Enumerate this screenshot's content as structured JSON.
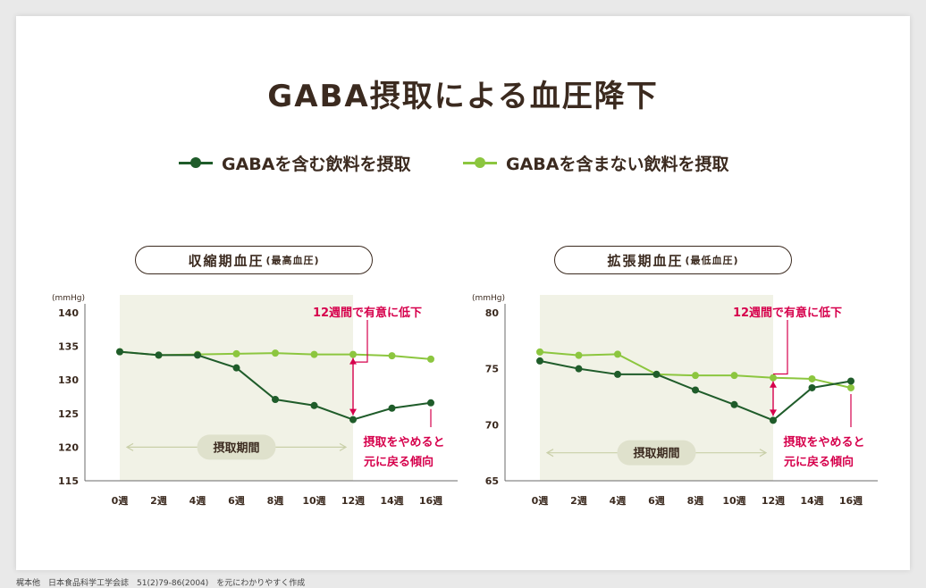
{
  "title": "GABA摂取による血圧降下",
  "legend": [
    {
      "label": "GABAを含む飲料を摂取",
      "color": "#1f5c2a"
    },
    {
      "label": "GABAを含まない飲料を摂取",
      "color": "#8cc63f"
    }
  ],
  "source": "梶本他　日本食品科学工学会誌　51(2)79-86(2004)　を元にわかりやすく作成",
  "chart_data": [
    {
      "type": "line",
      "pill_title": "収縮期血圧",
      "pill_sub": "(最高血圧)",
      "ylabel": "(mmHg)",
      "ylim": [
        115,
        140
      ],
      "yticks": [
        115,
        120,
        125,
        130,
        135,
        140
      ],
      "x": [
        "0週",
        "2週",
        "4週",
        "6週",
        "8週",
        "10週",
        "12週",
        "14週",
        "16週"
      ],
      "intake_period": {
        "label": "摂取期間",
        "from": "0週",
        "to": "12週"
      },
      "series": [
        {
          "name": "GABAを含む飲料を摂取",
          "color": "#1f5c2a",
          "values": [
            134.2,
            133.7,
            133.7,
            131.8,
            127.1,
            126.2,
            124.1,
            125.8,
            126.6
          ]
        },
        {
          "name": "GABAを含まない飲料を摂取",
          "color": "#8cc63f",
          "values": [
            134.2,
            133.7,
            133.8,
            133.9,
            134.0,
            133.8,
            133.8,
            133.6,
            133.1
          ]
        }
      ],
      "annotations": {
        "significant": "12週間で有意に低下",
        "return_1": "摂取をやめると",
        "return_2": "元に戻る傾向"
      }
    },
    {
      "type": "line",
      "pill_title": "拡張期血圧",
      "pill_sub": "(最低血圧)",
      "ylabel": "(mmHg)",
      "ylim": [
        65,
        80
      ],
      "yticks": [
        65,
        70,
        75,
        80
      ],
      "x": [
        "0週",
        "2週",
        "4週",
        "6週",
        "8週",
        "10週",
        "12週",
        "14週",
        "16週"
      ],
      "intake_period": {
        "label": "摂取期間",
        "from": "0週",
        "to": "12週"
      },
      "series": [
        {
          "name": "GABAを含む飲料を摂取",
          "color": "#1f5c2a",
          "values": [
            75.7,
            75.0,
            74.5,
            74.5,
            73.1,
            71.8,
            70.4,
            73.3,
            73.9
          ]
        },
        {
          "name": "GABAを含まない飲料を摂取",
          "color": "#8cc63f",
          "values": [
            76.5,
            76.2,
            76.3,
            74.5,
            74.4,
            74.4,
            74.2,
            74.1,
            73.3
          ]
        }
      ],
      "annotations": {
        "significant": "12週間で有意に低下",
        "return_1": "摂取をやめると",
        "return_2": "元に戻る傾向"
      }
    }
  ]
}
